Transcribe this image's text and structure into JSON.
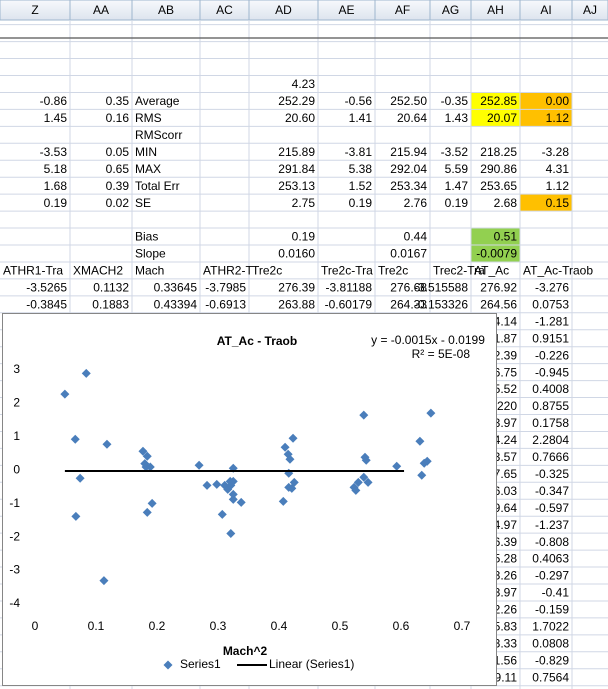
{
  "sheet": {
    "columns": [
      "Z",
      "AA",
      "AB",
      "AC",
      "AD",
      "AE",
      "AF",
      "AG",
      "AH",
      "AI",
      "AJ"
    ],
    "rows": [
      [
        null,
        null,
        null,
        null,
        "4.23",
        null,
        null,
        null,
        null,
        null,
        null
      ],
      [
        "-0.86",
        "0.35",
        "Average",
        null,
        "252.29",
        "-0.56",
        "252.50",
        "-0.35",
        "252.85",
        "0.00",
        null
      ],
      [
        "1.45",
        "0.16",
        "RMS",
        null,
        "20.60",
        "1.41",
        "20.64",
        "1.43",
        "20.07",
        "1.12",
        null
      ],
      [
        null,
        null,
        "RMScorr",
        null,
        null,
        null,
        null,
        null,
        null,
        null,
        null
      ],
      [
        "-3.53",
        "0.05",
        "MIN",
        null,
        "215.89",
        "-3.81",
        "215.94",
        "-3.52",
        "218.25",
        "-3.28",
        null
      ],
      [
        "5.18",
        "0.65",
        "MAX",
        null,
        "291.84",
        "5.38",
        "292.04",
        "5.59",
        "290.86",
        "4.31",
        null
      ],
      [
        "1.68",
        "0.39",
        "Total Err",
        null,
        "253.13",
        "1.52",
        "253.34",
        "1.47",
        "253.65",
        "1.12",
        null
      ],
      [
        "0.19",
        "0.02",
        "SE",
        null,
        "2.75",
        "0.19",
        "2.76",
        "0.19",
        "2.68",
        "0.15",
        null
      ],
      [
        null,
        null,
        null,
        null,
        null,
        null,
        null,
        null,
        null,
        null,
        null
      ],
      [
        null,
        null,
        "Bias",
        null,
        "0.19",
        null,
        "0.44",
        null,
        "0.51",
        null,
        null
      ],
      [
        null,
        null,
        "Slope",
        null,
        "0.0160",
        null,
        "0.0167",
        null,
        "-0.0079",
        null,
        null
      ],
      [
        "ATHR1-Tra",
        "XMACH2",
        "Mach",
        "ATHR2-T",
        "Tre2c",
        "Tre2c-Tra",
        "Tre2c",
        "Trec2-Tra",
        "AT_Ac",
        "AT_Ac-Traob",
        null
      ],
      [
        "-3.5265",
        "0.1132",
        "0.33645",
        "-3.7985",
        "276.39",
        "-3.81188",
        "276.68",
        "-3.515588",
        "276.92",
        "-3.276",
        null
      ],
      [
        "-0.3845",
        "0.1883",
        "0.43394",
        "-0.6913",
        "263.88",
        "-0.60179",
        "264.33",
        "-0.153326",
        "264.56",
        "0.0753",
        null
      ],
      [
        null,
        null,
        null,
        null,
        null,
        null,
        null,
        null,
        "4.14",
        "-1.281",
        null
      ],
      [
        null,
        null,
        null,
        null,
        null,
        null,
        null,
        null,
        "1.87",
        "0.9151",
        null
      ],
      [
        null,
        null,
        null,
        null,
        null,
        null,
        null,
        null,
        "2.39",
        "-0.226",
        null
      ],
      [
        null,
        null,
        null,
        null,
        null,
        null,
        null,
        null,
        "6.75",
        "-0.945",
        null
      ],
      [
        null,
        null,
        null,
        null,
        null,
        null,
        null,
        null,
        "5.52",
        "0.4008",
        null
      ],
      [
        null,
        null,
        null,
        null,
        null,
        null,
        null,
        null,
        "220",
        "0.8755",
        null
      ],
      [
        null,
        null,
        null,
        null,
        null,
        null,
        null,
        null,
        "3.97",
        "0.1758",
        null
      ],
      [
        null,
        null,
        null,
        null,
        null,
        null,
        null,
        null,
        "4.24",
        "2.2804",
        null
      ],
      [
        null,
        null,
        null,
        null,
        null,
        null,
        null,
        null,
        "3.57",
        "0.7666",
        null
      ],
      [
        null,
        null,
        null,
        null,
        null,
        null,
        null,
        null,
        "7.65",
        "-0.325",
        null
      ],
      [
        null,
        null,
        null,
        null,
        null,
        null,
        null,
        null,
        "6.03",
        "-0.347",
        null
      ],
      [
        null,
        null,
        null,
        null,
        null,
        null,
        null,
        null,
        "9.64",
        "-0.597",
        null
      ],
      [
        null,
        null,
        null,
        null,
        null,
        null,
        null,
        null,
        "4.97",
        "-1.237",
        null
      ],
      [
        null,
        null,
        null,
        null,
        null,
        null,
        null,
        null,
        "6.39",
        "-0.808",
        null
      ],
      [
        null,
        null,
        null,
        null,
        null,
        null,
        null,
        null,
        "5.28",
        "0.4063",
        null
      ],
      [
        null,
        null,
        null,
        null,
        null,
        null,
        null,
        null,
        "3.26",
        "-0.297",
        null
      ],
      [
        null,
        null,
        null,
        null,
        null,
        null,
        null,
        null,
        "3.97",
        "-0.41",
        null
      ],
      [
        null,
        null,
        null,
        null,
        null,
        null,
        null,
        null,
        "2.26",
        "-0.159",
        null
      ],
      [
        null,
        null,
        null,
        null,
        null,
        null,
        null,
        null,
        "5.83",
        "1.7022",
        null
      ],
      [
        null,
        null,
        null,
        null,
        null,
        null,
        null,
        null,
        "3.33",
        "0.0808",
        null
      ],
      [
        null,
        null,
        null,
        null,
        null,
        null,
        null,
        null,
        "1.56",
        "-0.829",
        null
      ],
      [
        null,
        null,
        null,
        null,
        null,
        null,
        null,
        null,
        "9.11",
        "0.7564",
        null
      ]
    ]
  },
  "chart_data": {
    "type": "scatter",
    "title": "AT_Ac - Traob",
    "x_label": "Mach^2",
    "x": [
      0.049,
      0.084,
      0.066,
      0.074,
      0.067,
      0.118,
      0.113,
      0.177,
      0.184,
      0.18,
      0.182,
      0.189,
      0.184,
      0.192,
      0.269,
      0.282,
      0.298,
      0.307,
      0.311,
      0.316,
      0.321,
      0.325,
      0.325,
      0.325,
      0.321,
      0.338,
      0.32,
      0.325,
      0.407,
      0.41,
      0.415,
      0.418,
      0.423,
      0.416,
      0.416,
      0.421,
      0.425,
      0.523,
      0.526,
      0.53,
      0.539,
      0.543,
      0.541,
      0.539,
      0.546,
      0.593,
      0.631,
      0.634,
      0.638,
      0.643,
      0.649
    ],
    "series": [
      {
        "name": "Series1",
        "color": "#4a7ebb",
        "values": [
          2.28,
          2.9,
          0.93,
          -0.24,
          -1.38,
          0.78,
          -3.3,
          0.57,
          0.42,
          0.2,
          0.1,
          0.1,
          -1.26,
          -0.99,
          0.15,
          -0.45,
          -0.42,
          -1.32,
          -0.45,
          -0.57,
          -0.45,
          0.06,
          -0.87,
          -0.72,
          -1.89,
          -0.96,
          -0.33,
          -0.33,
          -0.93,
          0.69,
          0.48,
          0.33,
          0.96,
          -0.09,
          -0.51,
          -0.54,
          -0.36,
          -0.51,
          -0.6,
          -0.36,
          1.65,
          0.3,
          0.39,
          -0.21,
          -0.36,
          0.12,
          0.87,
          -0.15,
          0.21,
          0.27,
          1.71
        ]
      }
    ],
    "trendline": {
      "name": "Linear (Series1)",
      "color": "#000000",
      "equation": "y = -0.0015x - 0.0199",
      "r_squared": "R² = 5E-08",
      "slope": -0.0015,
      "intercept": -0.0199,
      "x_range": [
        0.049,
        0.605
      ]
    },
    "xlim": [
      0,
      0.7
    ],
    "ylim": [
      -4,
      3
    ],
    "xticks": [
      0,
      0.1,
      0.2,
      0.3,
      0.4,
      0.5,
      0.6,
      0.7
    ],
    "yticks": [
      -4,
      -3,
      -2,
      -1,
      0,
      1,
      2,
      3
    ],
    "grid": false
  }
}
